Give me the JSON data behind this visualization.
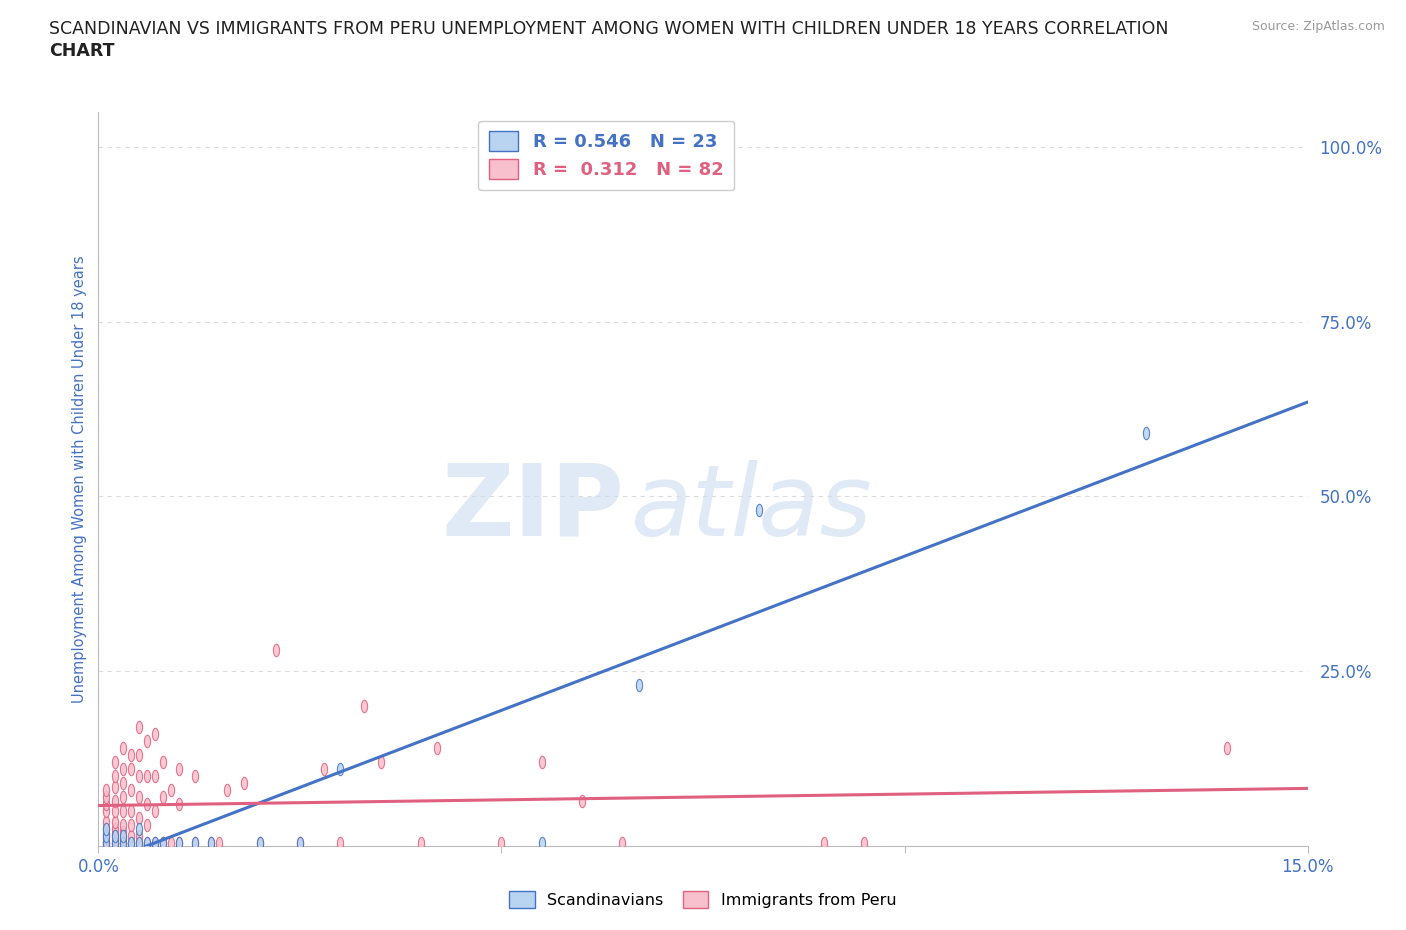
{
  "title_line1": "SCANDINAVIAN VS IMMIGRANTS FROM PERU UNEMPLOYMENT AMONG WOMEN WITH CHILDREN UNDER 18 YEARS CORRELATION",
  "title_line2": "CHART",
  "source": "Source: ZipAtlas.com",
  "ylabel": "Unemployment Among Women with Children Under 18 years",
  "xlim": [
    0.0,
    0.15
  ],
  "ylim": [
    0.0,
    1.05
  ],
  "x_ticks": [
    0.0,
    0.05,
    0.1,
    0.15
  ],
  "x_tick_labels": [
    "0.0%",
    "",
    "",
    "15.0%"
  ],
  "y_ticks": [
    0.0,
    0.25,
    0.5,
    0.75,
    1.0
  ],
  "y_tick_labels": [
    "",
    "25.0%",
    "50.0%",
    "75.0%",
    "100.0%"
  ],
  "watermark_zip": "ZIP",
  "watermark_atlas": "atlas",
  "scand_face": "#b8d4f0",
  "scand_edge": "#4472c4",
  "peru_face": "#f8c0cc",
  "peru_edge": "#e06080",
  "scand_line": "#4472c4",
  "peru_line": "#e06080",
  "R_scand": 0.546,
  "N_scand": 23,
  "R_peru": 0.312,
  "N_peru": 82,
  "scand_x": [
    0.001,
    0.001,
    0.001,
    0.002,
    0.002,
    0.003,
    0.003,
    0.004,
    0.005,
    0.005,
    0.006,
    0.007,
    0.008,
    0.01,
    0.012,
    0.014,
    0.02,
    0.025,
    0.03,
    0.055,
    0.067,
    0.082,
    0.13
  ],
  "scand_y": [
    0.005,
    0.015,
    0.025,
    0.005,
    0.015,
    0.005,
    0.015,
    0.005,
    0.005,
    0.025,
    0.005,
    0.005,
    0.005,
    0.005,
    0.005,
    0.005,
    0.005,
    0.005,
    0.11,
    0.005,
    0.23,
    0.48,
    0.59
  ],
  "peru_x": [
    0.001,
    0.001,
    0.001,
    0.001,
    0.001,
    0.001,
    0.001,
    0.001,
    0.001,
    0.001,
    0.002,
    0.002,
    0.002,
    0.002,
    0.002,
    0.002,
    0.002,
    0.002,
    0.002,
    0.002,
    0.003,
    0.003,
    0.003,
    0.003,
    0.003,
    0.003,
    0.003,
    0.003,
    0.003,
    0.004,
    0.004,
    0.004,
    0.004,
    0.004,
    0.004,
    0.004,
    0.005,
    0.005,
    0.005,
    0.005,
    0.005,
    0.005,
    0.005,
    0.006,
    0.006,
    0.006,
    0.006,
    0.006,
    0.007,
    0.007,
    0.007,
    0.007,
    0.008,
    0.008,
    0.008,
    0.009,
    0.009,
    0.01,
    0.01,
    0.01,
    0.012,
    0.012,
    0.014,
    0.015,
    0.016,
    0.018,
    0.02,
    0.022,
    0.025,
    0.028,
    0.03,
    0.033,
    0.035,
    0.04,
    0.042,
    0.05,
    0.055,
    0.06,
    0.065,
    0.09,
    0.095,
    0.14
  ],
  "peru_y": [
    0.005,
    0.008,
    0.012,
    0.018,
    0.025,
    0.035,
    0.05,
    0.06,
    0.07,
    0.08,
    0.005,
    0.01,
    0.018,
    0.025,
    0.035,
    0.05,
    0.065,
    0.085,
    0.1,
    0.12,
    0.005,
    0.01,
    0.02,
    0.03,
    0.05,
    0.07,
    0.09,
    0.11,
    0.14,
    0.005,
    0.015,
    0.03,
    0.05,
    0.08,
    0.11,
    0.13,
    0.005,
    0.015,
    0.04,
    0.07,
    0.1,
    0.13,
    0.17,
    0.005,
    0.03,
    0.06,
    0.1,
    0.15,
    0.005,
    0.05,
    0.1,
    0.16,
    0.005,
    0.07,
    0.12,
    0.005,
    0.08,
    0.005,
    0.06,
    0.11,
    0.005,
    0.1,
    0.005,
    0.005,
    0.08,
    0.09,
    0.005,
    0.28,
    0.005,
    0.11,
    0.005,
    0.2,
    0.12,
    0.005,
    0.14,
    0.005,
    0.12,
    0.065,
    0.005,
    0.005,
    0.005,
    0.14
  ],
  "bg_color": "#ffffff",
  "grid_color": "#cccccc",
  "title_color": "#222222",
  "label_color": "#4472c4"
}
